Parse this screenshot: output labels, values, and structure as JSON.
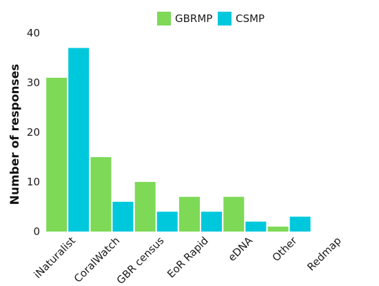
{
  "chart_data": {
    "type": "bar",
    "title": "",
    "xlabel": "",
    "ylabel": "Number of responses",
    "categories": [
      "iNaturalist",
      "CoralWatch",
      "GBR census",
      "EoR Rapid",
      "eDNA",
      "Other",
      "Redmap"
    ],
    "series": [
      {
        "name": "GBRMP",
        "color": "#7ed957",
        "values": [
          31,
          15,
          10,
          7,
          7,
          1,
          0
        ]
      },
      {
        "name": "CSMP",
        "color": "#00c8dc",
        "values": [
          37,
          6,
          4,
          4,
          2,
          3,
          0
        ]
      }
    ],
    "ylim": [
      0,
      40
    ],
    "yticks": [
      0,
      10,
      20,
      30,
      40
    ],
    "grid": false,
    "legend_position": "top-center"
  }
}
